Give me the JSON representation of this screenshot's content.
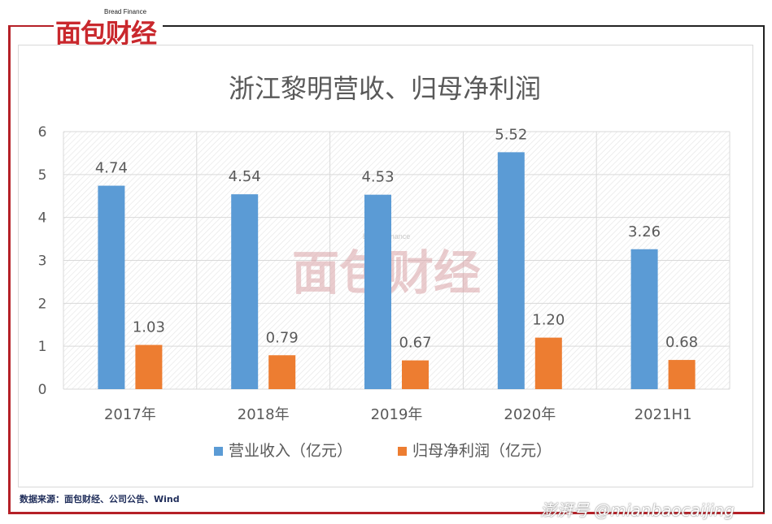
{
  "brand": {
    "name_cn": "面包财经",
    "name_en": "Bread Finance"
  },
  "source_note": "数据来源：面包财经、公司公告、Wind",
  "corner_watermark": "澎湃号 @mianbaocaijing",
  "colors": {
    "revenue": "#5b9bd5",
    "net_profit": "#ed7d31",
    "frame_red": "#b52027",
    "gridline": "#d9d9d9",
    "text": "#595959"
  },
  "chart_data": {
    "type": "bar",
    "title": "浙江黎明营收、归母净利润",
    "categories": [
      "2017年",
      "2018年",
      "2019年",
      "2020年",
      "2021H1"
    ],
    "series": [
      {
        "name": "营业收入（亿元）",
        "values": [
          4.74,
          4.54,
          4.53,
          5.52,
          3.26
        ],
        "labels": [
          "4.74",
          "4.54",
          "4.53",
          "5.52",
          "3.26"
        ]
      },
      {
        "name": "归母净利润（亿元）",
        "values": [
          1.03,
          0.79,
          0.67,
          1.2,
          0.68
        ],
        "labels": [
          "1.03",
          "0.79",
          "0.67",
          "1.20",
          "0.68"
        ]
      }
    ],
    "ylim": [
      0,
      6
    ],
    "yticks": [
      "0",
      "1",
      "2",
      "3",
      "4",
      "5",
      "6"
    ],
    "grid": true,
    "legend_position": "bottom",
    "xlabel": "",
    "ylabel": ""
  }
}
